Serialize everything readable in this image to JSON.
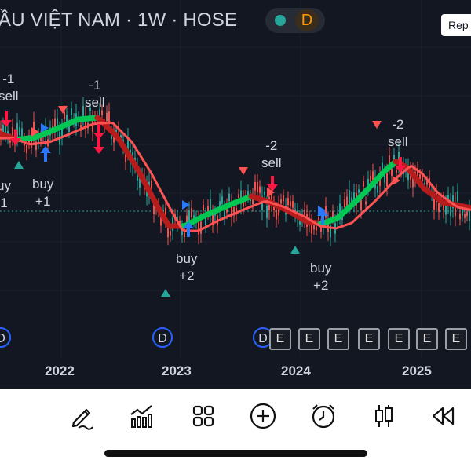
{
  "header": {
    "title": "ẦU VIỆT NAM · 1W · HOSE",
    "interval_badge": "D",
    "replay_label": "Rep"
  },
  "signals": [
    {
      "kind": "sell",
      "line1": "-1",
      "line2": "sell"
    },
    {
      "kind": "sell",
      "line1": "-1",
      "line2": "sell"
    },
    {
      "kind": "buy",
      "line1": "uy",
      "line2": "1"
    },
    {
      "kind": "buy",
      "line1": "buy",
      "line2": "+1"
    },
    {
      "kind": "buy",
      "line1": "buy",
      "line2": "+2"
    },
    {
      "kind": "sell",
      "line1": "-2",
      "line2": "sell"
    },
    {
      "kind": "buy",
      "line1": "buy",
      "line2": "+2"
    },
    {
      "kind": "sell",
      "line1": "-2",
      "line2": "sell"
    }
  ],
  "x_axis": [
    "2022",
    "2023",
    "2024",
    "2025"
  ],
  "events": {
    "dividend_label": "D",
    "earnings_label": "E"
  },
  "colors": {
    "background": "#131722",
    "candle_up": "#26a69a",
    "candle_down": "#ef5350",
    "trend_up": "#00c853",
    "trend_down": "#b71c1c",
    "ma_line": "#ff5252",
    "buy_arrow": "#2979ff",
    "sell_arrow": "#ff1744",
    "event_dividend_border": "#2962ff"
  },
  "toolbar": {
    "icons": [
      "draw-pen-icon",
      "indicators-icon",
      "layout-grid-icon",
      "add-circle-icon",
      "alarm-clock-icon",
      "candlestick-type-icon",
      "replay-rewind-icon"
    ]
  }
}
